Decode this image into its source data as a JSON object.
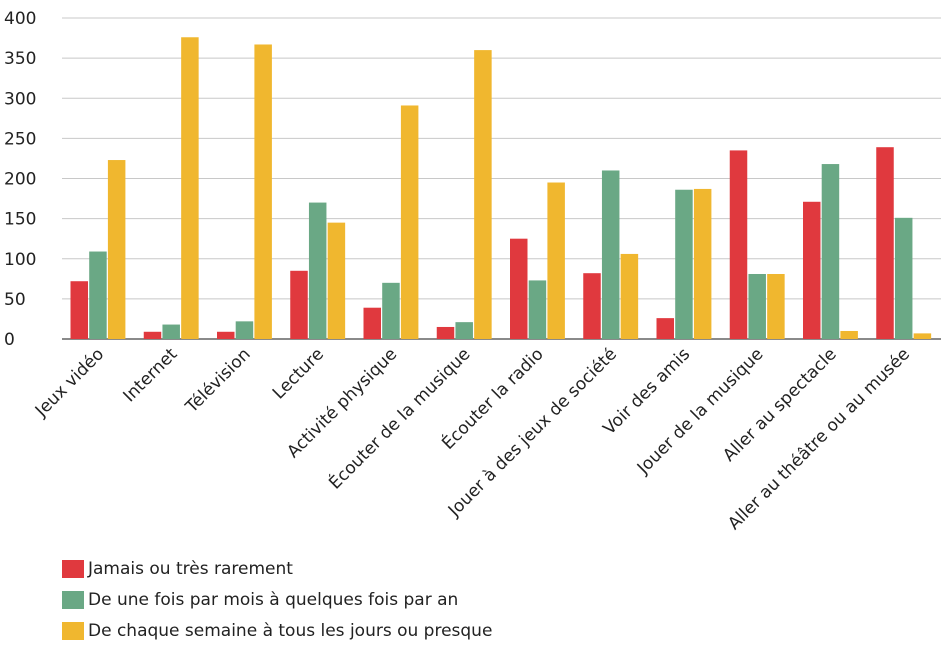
{
  "chart_data": {
    "type": "bar",
    "categories": [
      "Jeux vidéo",
      "Internet",
      "Télévision",
      "Lecture",
      "Activité physique",
      "Écouter de la musique",
      "Écouter la radio",
      "Jouer à des jeux de société",
      "Voir des amis",
      "Jouer de la musique",
      "Aller au spectacle",
      "Aller au théâtre ou au musée"
    ],
    "series": [
      {
        "name": "Jamais ou très rarement",
        "color": "#e0393e",
        "values": [
          72,
          9,
          9,
          85,
          39,
          15,
          125,
          82,
          26,
          235,
          171,
          239
        ]
      },
      {
        "name": "De une fois par mois à quelques fois par an",
        "color": "#6aa885",
        "values": [
          109,
          18,
          22,
          170,
          70,
          21,
          73,
          210,
          186,
          81,
          218,
          151
        ]
      },
      {
        "name": "De chaque semaine à tous les jours ou presque",
        "color": "#f0b72f",
        "values": [
          223,
          376,
          367,
          145,
          291,
          360,
          195,
          106,
          187,
          81,
          10,
          7
        ]
      }
    ],
    "ylim": [
      0,
      400
    ],
    "yticks": [
      0,
      50,
      100,
      150,
      200,
      250,
      300,
      350,
      400
    ],
    "grid": true,
    "legend": "bottom-left"
  }
}
